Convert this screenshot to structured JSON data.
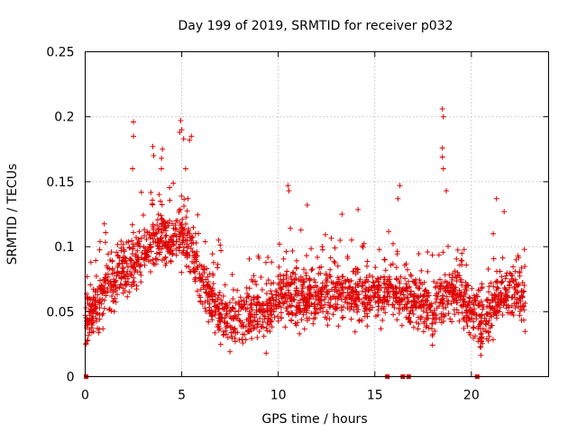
{
  "chart_data": {
    "type": "scatter",
    "title": "Day 199 of 2019, SRMTID for receiver p032",
    "xlabel": "GPS time / hours",
    "ylabel": "SRMTID / TECUs",
    "xlim": [
      0,
      24
    ],
    "ylim": [
      0,
      0.25
    ],
    "xticks": [
      0,
      5,
      10,
      15,
      20
    ],
    "xtick_labels": [
      "0",
      "5",
      "10",
      "15",
      "20"
    ],
    "yticks": [
      0,
      0.05,
      0.1,
      0.15,
      0.2,
      0.25
    ],
    "ytick_labels": [
      "0",
      "0.05",
      "0.1",
      "0.15",
      "0.2",
      "0.25"
    ],
    "grid": true,
    "marker": "plus",
    "color": "#e00000",
    "x_data_range": [
      0,
      22.8
    ],
    "trend": {
      "x": [
        0,
        0.5,
        1,
        1.5,
        2,
        2.5,
        3,
        3.5,
        4,
        4.5,
        5,
        5.5,
        6,
        6.5,
        7,
        7.5,
        8,
        8.5,
        9,
        9.5,
        10,
        10.5,
        11,
        11.5,
        12,
        12.5,
        13,
        13.5,
        14,
        14.5,
        15,
        15.5,
        16,
        16.5,
        17,
        17.5,
        18,
        18.5,
        19,
        19.5,
        20,
        20.5,
        21,
        21.5,
        22,
        22.5,
        22.8
      ],
      "y": [
        0.045,
        0.05,
        0.065,
        0.075,
        0.08,
        0.085,
        0.095,
        0.105,
        0.11,
        0.1,
        0.11,
        0.1,
        0.075,
        0.06,
        0.05,
        0.04,
        0.045,
        0.05,
        0.05,
        0.05,
        0.06,
        0.065,
        0.06,
        0.06,
        0.06,
        0.065,
        0.065,
        0.065,
        0.065,
        0.06,
        0.065,
        0.065,
        0.065,
        0.06,
        0.06,
        0.055,
        0.05,
        0.06,
        0.065,
        0.06,
        0.05,
        0.04,
        0.05,
        0.06,
        0.065,
        0.065,
        0.06
      ]
    },
    "spread": 0.02,
    "peaks": [
      {
        "x": 2.5,
        "y": 0.196
      },
      {
        "x": 2.5,
        "y": 0.185
      },
      {
        "x": 2.45,
        "y": 0.16
      },
      {
        "x": 3.5,
        "y": 0.177
      },
      {
        "x": 3.55,
        "y": 0.17
      },
      {
        "x": 3.95,
        "y": 0.168
      },
      {
        "x": 4.0,
        "y": 0.175
      },
      {
        "x": 4.95,
        "y": 0.197
      },
      {
        "x": 4.9,
        "y": 0.188
      },
      {
        "x": 5.0,
        "y": 0.19
      },
      {
        "x": 5.1,
        "y": 0.183
      },
      {
        "x": 5.5,
        "y": 0.185
      },
      {
        "x": 5.4,
        "y": 0.182
      },
      {
        "x": 5.2,
        "y": 0.16
      },
      {
        "x": 10.5,
        "y": 0.147
      },
      {
        "x": 10.55,
        "y": 0.143
      },
      {
        "x": 11.5,
        "y": 0.132
      },
      {
        "x": 13.3,
        "y": 0.125
      },
      {
        "x": 16.3,
        "y": 0.147
      },
      {
        "x": 16.2,
        "y": 0.137
      },
      {
        "x": 18.5,
        "y": 0.206
      },
      {
        "x": 18.55,
        "y": 0.2
      },
      {
        "x": 18.5,
        "y": 0.176
      },
      {
        "x": 18.5,
        "y": 0.169
      },
      {
        "x": 18.55,
        "y": 0.16
      },
      {
        "x": 18.7,
        "y": 0.143
      },
      {
        "x": 21.3,
        "y": 0.137
      },
      {
        "x": 21.7,
        "y": 0.127
      }
    ],
    "zero_points": [
      0.05,
      15.65,
      16.45,
      16.75,
      20.3
    ]
  }
}
